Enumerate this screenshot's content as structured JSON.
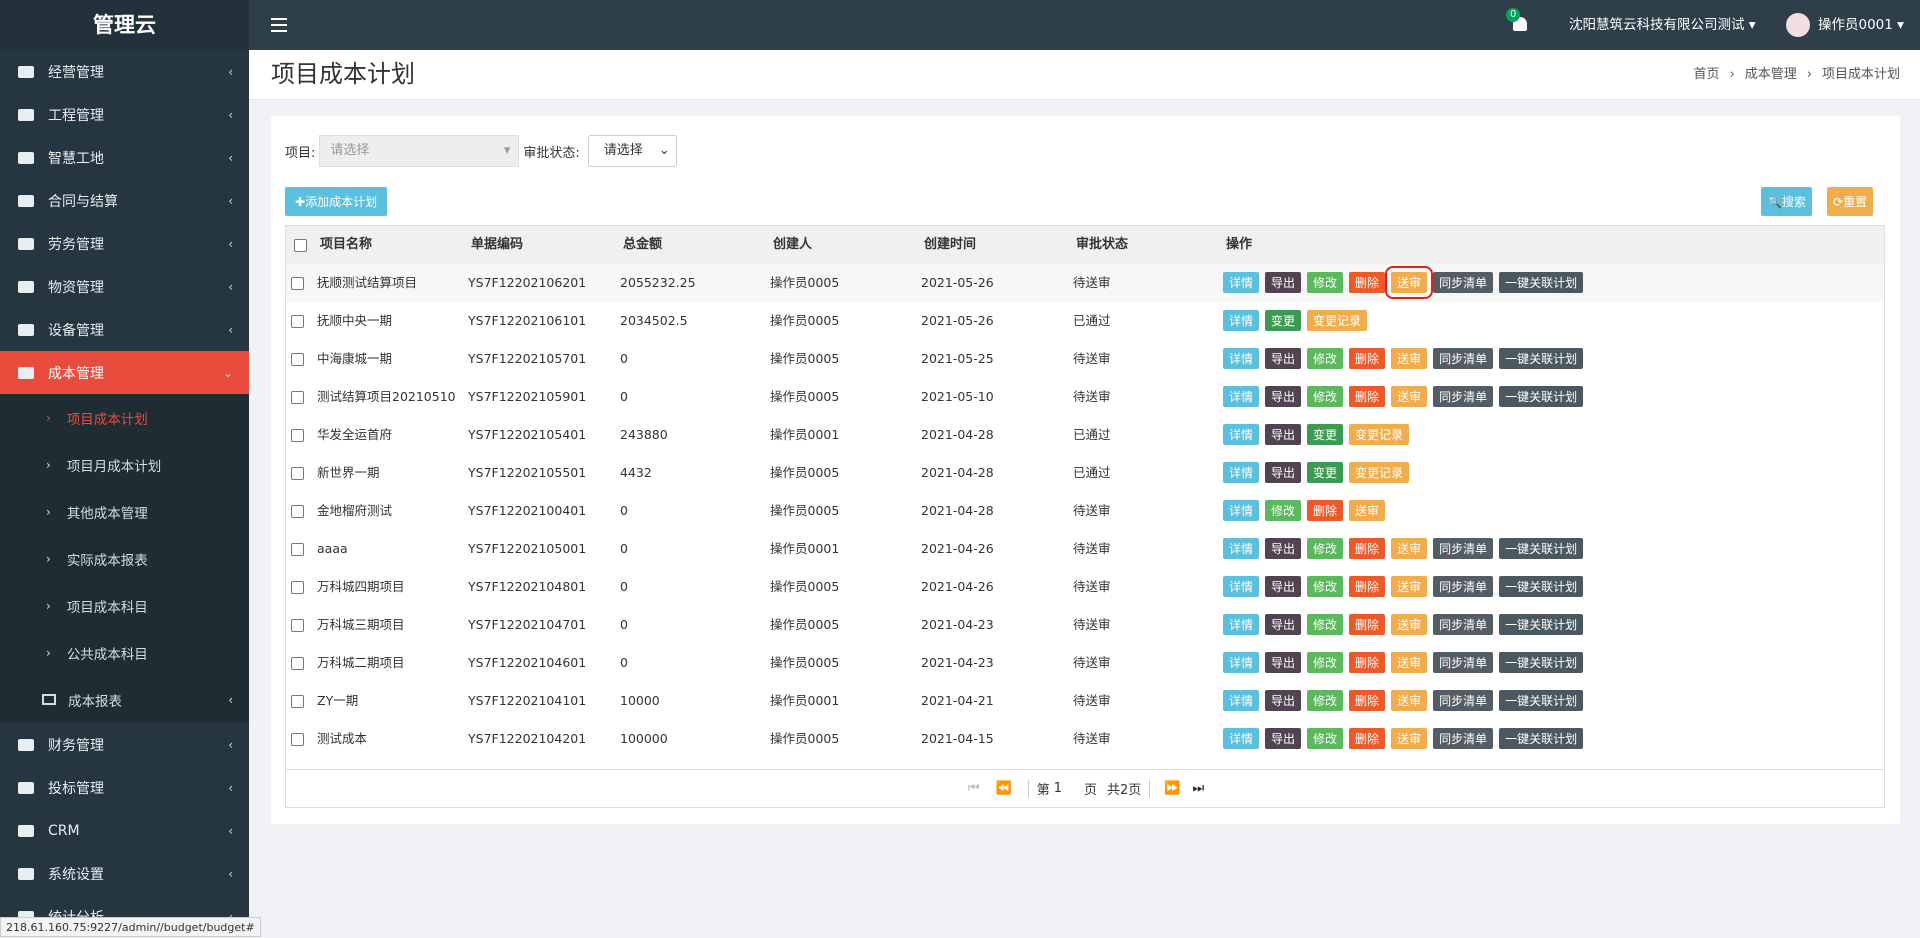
{
  "brand": "管理云",
  "menu": [
    {
      "label": "经营管理"
    },
    {
      "label": "工程管理"
    },
    {
      "label": "智慧工地"
    },
    {
      "label": "合同与结算"
    },
    {
      "label": "劳务管理"
    },
    {
      "label": "物资管理"
    },
    {
      "label": "设备管理"
    },
    {
      "label": "成本管理",
      "active": true,
      "children": [
        {
          "label": "项目成本计划",
          "active": true
        },
        {
          "label": "项目月成本计划"
        },
        {
          "label": "其他成本管理"
        },
        {
          "label": "实际成本报表"
        },
        {
          "label": "项目成本科目"
        },
        {
          "label": "公共成本科目"
        },
        {
          "label": "成本报表",
          "grid": true
        }
      ]
    },
    {
      "label": "财务管理"
    },
    {
      "label": "投标管理"
    },
    {
      "label": "CRM"
    },
    {
      "label": "系统设置"
    },
    {
      "label": "统计分析"
    }
  ],
  "status_url": "218.61.160.75:9227/admin//budget/budget#",
  "header": {
    "notifications": "0",
    "company": "沈阳慧筑云科技有限公司测试",
    "user": "操作员0001"
  },
  "page": {
    "title": "项目成本计划",
    "breadcrumb": [
      "首页",
      "成本管理",
      "项目成本计划"
    ]
  },
  "filters": {
    "project_label": "项目:",
    "project_placeholder": "请选择",
    "status_label": "审批状态:",
    "status_placeholder": "请选择"
  },
  "buttons": {
    "add": "添加成本计划",
    "search": "搜索",
    "reset": "重置"
  },
  "action_colors": {
    "详情": "#5bc0de",
    "导出": "#4f4450",
    "修改": "#5cb85c",
    "删除": "#ec5a2a",
    "送审": "#f0ad4e",
    "同步清单": "#555d64",
    "一键关联计划": "#4b5860",
    "变更": "#3d9a52",
    "变更记录": "#f0ad4e"
  },
  "table": {
    "columns": [
      "项目名称",
      "单据编码",
      "总金额",
      "创建人",
      "创建时间",
      "审批状态",
      "操作"
    ],
    "rows": [
      {
        "cells": [
          "抚顺测试结算项目",
          "YS7F12202106201",
          "2055232.25",
          "操作员0005",
          "2021-05-26",
          "待送审"
        ],
        "actions": [
          "详情",
          "导出",
          "修改",
          "删除",
          "送审",
          "同步清单",
          "一键关联计划"
        ]
      },
      {
        "cells": [
          "抚顺中央一期",
          "YS7F12202106101",
          "2034502.5",
          "操作员0005",
          "2021-05-26",
          "已通过"
        ],
        "actions": [
          "详情",
          "变更",
          "变更记录"
        ]
      },
      {
        "cells": [
          "中海康城一期",
          "YS7F12202105701",
          "0",
          "操作员0005",
          "2021-05-25",
          "待送审"
        ],
        "actions": [
          "详情",
          "导出",
          "修改",
          "删除",
          "送审",
          "同步清单",
          "一键关联计划"
        ]
      },
      {
        "cells": [
          "测试结算项目20210510",
          "YS7F12202105901",
          "0",
          "操作员0005",
          "2021-05-10",
          "待送审"
        ],
        "actions": [
          "详情",
          "导出",
          "修改",
          "删除",
          "送审",
          "同步清单",
          "一键关联计划"
        ]
      },
      {
        "cells": [
          "华发全运首府",
          "YS7F12202105401",
          "243880",
          "操作员0001",
          "2021-04-28",
          "已通过"
        ],
        "actions": [
          "详情",
          "导出",
          "变更",
          "变更记录"
        ]
      },
      {
        "cells": [
          "新世界一期",
          "YS7F12202105501",
          "4432",
          "操作员0005",
          "2021-04-28",
          "已通过"
        ],
        "actions": [
          "详情",
          "导出",
          "变更",
          "变更记录"
        ]
      },
      {
        "cells": [
          "金地榴府测试",
          "YS7F12202100401",
          "0",
          "操作员0005",
          "2021-04-28",
          "待送审"
        ],
        "actions": [
          "详情",
          "修改",
          "删除",
          "送审"
        ]
      },
      {
        "cells": [
          "aaaa",
          "YS7F12202105001",
          "0",
          "操作员0001",
          "2021-04-26",
          "待送审"
        ],
        "actions": [
          "详情",
          "导出",
          "修改",
          "删除",
          "送审",
          "同步清单",
          "一键关联计划"
        ]
      },
      {
        "cells": [
          "万科城四期项目",
          "YS7F12202104801",
          "0",
          "操作员0005",
          "2021-04-26",
          "待送审"
        ],
        "actions": [
          "详情",
          "导出",
          "修改",
          "删除",
          "送审",
          "同步清单",
          "一键关联计划"
        ]
      },
      {
        "cells": [
          "万科城三期项目",
          "YS7F12202104701",
          "0",
          "操作员0005",
          "2021-04-23",
          "待送审"
        ],
        "actions": [
          "详情",
          "导出",
          "修改",
          "删除",
          "送审",
          "同步清单",
          "一键关联计划"
        ]
      },
      {
        "cells": [
          "万科城二期项目",
          "YS7F12202104601",
          "0",
          "操作员0005",
          "2021-04-23",
          "待送审"
        ],
        "actions": [
          "详情",
          "导出",
          "修改",
          "删除",
          "送审",
          "同步清单",
          "一键关联计划"
        ]
      },
      {
        "cells": [
          "ZY一期",
          "YS7F12202104101",
          "10000",
          "操作员0001",
          "2021-04-21",
          "待送审"
        ],
        "actions": [
          "详情",
          "导出",
          "修改",
          "删除",
          "送审",
          "同步清单",
          "一键关联计划"
        ]
      },
      {
        "cells": [
          "测试成本",
          "YS7F12202104201",
          "100000",
          "操作员0005",
          "2021-04-15",
          "待送审"
        ],
        "actions": [
          "详情",
          "导出",
          "修改",
          "删除",
          "送审",
          "同步清单",
          "一键关联计划"
        ]
      }
    ]
  },
  "pagination": {
    "prefix": "第",
    "page": "1",
    "suffix": "页",
    "total": "共2页"
  }
}
